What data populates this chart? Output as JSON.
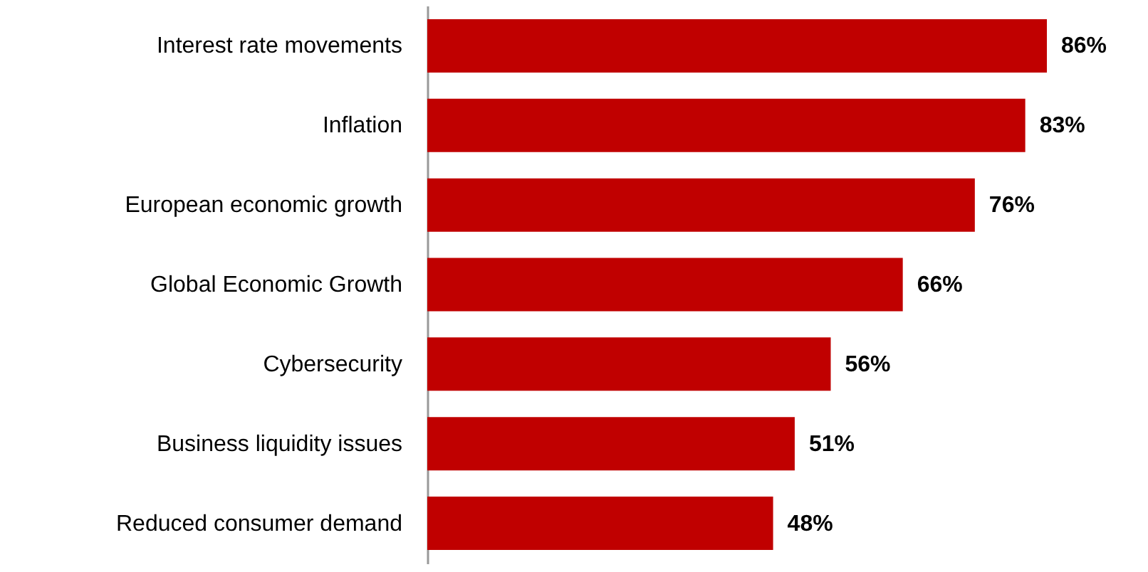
{
  "chart_data": {
    "type": "bar",
    "orientation": "horizontal",
    "categories": [
      "Interest rate movements",
      "Inflation",
      "European economic growth",
      "Global Economic Growth",
      "Cybersecurity",
      "Business liquidity issues",
      "Reduced consumer demand"
    ],
    "values": [
      86,
      83,
      76,
      66,
      56,
      51,
      48
    ],
    "value_labels": [
      "86%",
      "83%",
      "76%",
      "66%",
      "56%",
      "51%",
      "48%"
    ],
    "color": "#c00000"
  }
}
